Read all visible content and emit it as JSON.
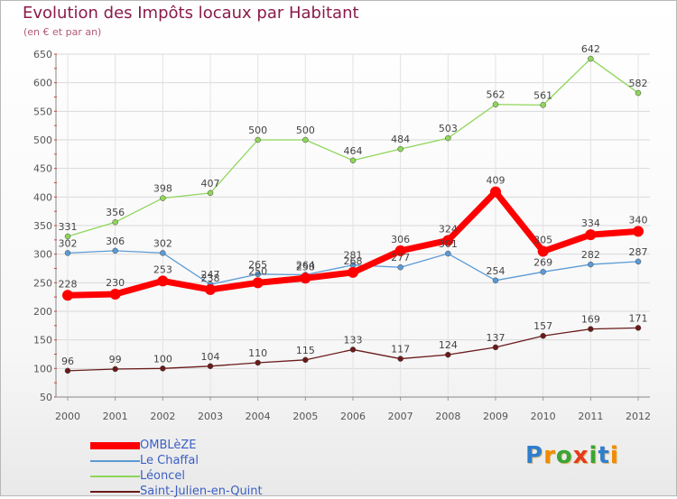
{
  "title": "Evolution des Impôts locaux par Habitant",
  "subtitle": "(en € et par an)",
  "logo": {
    "text": "Proxiti",
    "letters": [
      {
        "ch": "P",
        "color": "#2e7ecf"
      },
      {
        "ch": "r",
        "color": "#f08a00"
      },
      {
        "ch": "o",
        "color": "#3aa535"
      },
      {
        "ch": "x",
        "color": "#e53a1b"
      },
      {
        "ch": "i",
        "color": "#3aa535"
      },
      {
        "ch": "t",
        "color": "#2e7ecf"
      },
      {
        "ch": "i",
        "color": "#f08a00"
      }
    ]
  },
  "chart_data": {
    "type": "line",
    "x": [
      "2000",
      "2001",
      "2002",
      "2003",
      "2004",
      "2005",
      "2006",
      "2007",
      "2008",
      "2009",
      "2010",
      "2011",
      "2012"
    ],
    "ylim": [
      50,
      650
    ],
    "yticks": [
      50,
      100,
      150,
      200,
      250,
      300,
      350,
      400,
      450,
      500,
      550,
      600,
      650
    ],
    "grid": true,
    "legend_position": "bottom-left",
    "series": [
      {
        "name": "Saint-Julien-en-Quint",
        "color": "#6b1a1a",
        "values": [
          96,
          99,
          100,
          104,
          110,
          115,
          133,
          117,
          124,
          137,
          157,
          169,
          171
        ],
        "labels": [
          "96",
          "99",
          "100",
          "104",
          "110",
          "115",
          "133",
          "117",
          "124",
          "137",
          "157",
          "169",
          "171"
        ]
      },
      {
        "name": "Léoncel",
        "color": "#8fd65a",
        "values": [
          331,
          356,
          398,
          407,
          500,
          500,
          464,
          484,
          503,
          562,
          561,
          642,
          582
        ],
        "labels": [
          "331",
          "356",
          "398",
          "407",
          "500",
          "500",
          "464",
          "484",
          "503",
          "562",
          "561",
          "642",
          "582"
        ]
      },
      {
        "name": "Le Chaffal",
        "color": "#5b9bd5",
        "values": [
          302,
          306,
          302,
          247,
          265,
          264,
          281,
          277,
          301,
          254,
          269,
          282,
          287
        ],
        "labels": [
          "302",
          "306",
          "302",
          "247",
          "265",
          "264",
          "281",
          "277",
          "301",
          "254",
          "269",
          "282",
          "287"
        ]
      },
      {
        "name": "OMBLèZE",
        "color": "#ff0000",
        "values": [
          228,
          230,
          253,
          238,
          250,
          258,
          268,
          306,
          324,
          409,
          305,
          334,
          340
        ],
        "labels": [
          "228",
          "230",
          "253",
          "238",
          "250",
          "258",
          "268",
          "306",
          "324",
          "409",
          "305",
          "334",
          "340"
        ]
      }
    ],
    "legend_order": [
      "OMBLèZE",
      "Le Chaffal",
      "Léoncel",
      "Saint-Julien-en-Quint"
    ]
  }
}
